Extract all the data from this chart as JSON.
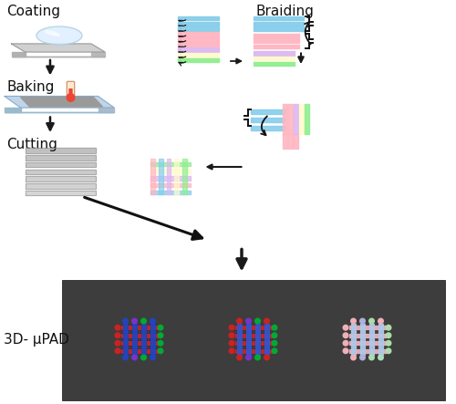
{
  "bg_color": "#ffffff",
  "labels": {
    "coating": "Coating",
    "baking": "Baking",
    "cutting": "Cutting",
    "braiding": "Braiding",
    "pad": "3D- μPAD"
  },
  "label_fontsize": 11,
  "sc_blue": "#87CEEB",
  "sc_pink": "#FFB6C1",
  "sc_lavender": "#DDB8F0",
  "sc_yellow": "#FFFACD",
  "sc_green": "#90EE90",
  "sc_magenta": "#FFB0D0",
  "arrow_color": "#1a1a1a",
  "plate_color": "#c8c8c8",
  "plate_edge": "#999999",
  "bake_plate_color": "#c8dce8",
  "bake_sq_color": "#9a9a9a",
  "photo_bg": "#3d3d3d"
}
